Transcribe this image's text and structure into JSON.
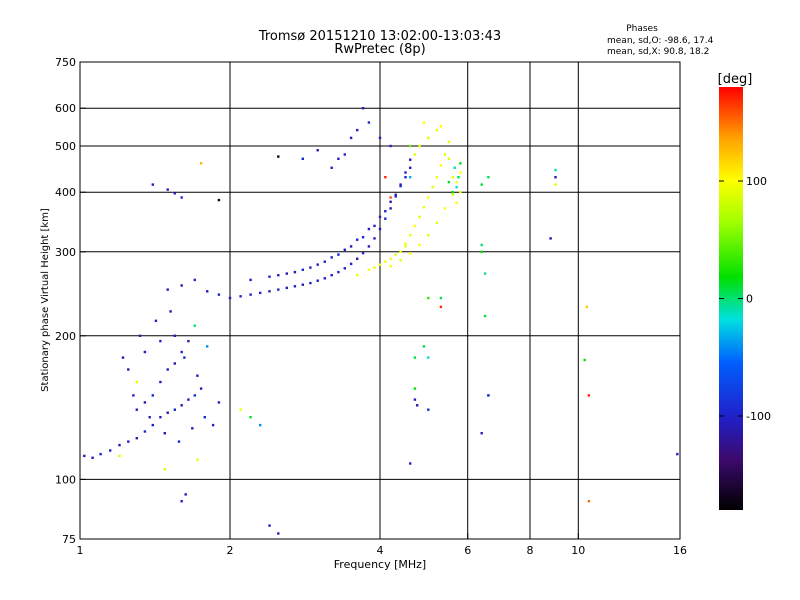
{
  "header": {
    "title_line1": "Tromsø 20151210 13:02:00-13:03:43",
    "title_line2": "RwPretec (8p)",
    "stats_heading": "Phases",
    "stats_o": "mean, sd,O: -98.6, 17.4",
    "stats_x": "mean, sd,X:  90.8, 18.2"
  },
  "colorbar": {
    "unit_label": "[deg]",
    "range": [
      -180,
      180
    ],
    "ticks": [
      {
        "value": 100,
        "label": "100"
      },
      {
        "value": 0,
        "label": "0"
      },
      {
        "value": -100,
        "label": "-100"
      }
    ]
  },
  "chart_data": {
    "type": "scatter",
    "xlabel": "Frequency [MHz]",
    "ylabel": "Stationary phase Virtual Height [km]",
    "xscale": "log",
    "yscale": "log",
    "xlim": [
      1,
      16
    ],
    "ylim": [
      75,
      750
    ],
    "xticks": [
      {
        "value": 1,
        "label": "1"
      },
      {
        "value": 2,
        "label": "2"
      },
      {
        "value": 4,
        "label": "4"
      },
      {
        "value": 6,
        "label": "6"
      },
      {
        "value": 8,
        "label": "8"
      },
      {
        "value": 10,
        "label": "10"
      },
      {
        "value": 16,
        "label": "16"
      }
    ],
    "yticks": [
      {
        "value": 75,
        "label": "75"
      },
      {
        "value": 100,
        "label": "100"
      },
      {
        "value": 200,
        "label": "200"
      },
      {
        "value": 300,
        "label": "300"
      },
      {
        "value": 400,
        "label": "400"
      },
      {
        "value": 500,
        "label": "500"
      },
      {
        "value": 600,
        "label": "600"
      },
      {
        "value": 750,
        "label": "750"
      }
    ],
    "x_gridlines": [
      2,
      4,
      6,
      8,
      10
    ],
    "y_gridlines": [
      100,
      200,
      300,
      400,
      500,
      600
    ],
    "grid": true,
    "color_dimension": "phase [deg]",
    "series": [
      {
        "points": [
          [
            1.02,
            112,
            -105
          ],
          [
            1.06,
            111,
            -110
          ],
          [
            1.1,
            113,
            -100
          ],
          [
            1.15,
            115,
            -95
          ],
          [
            1.2,
            118,
            -115
          ],
          [
            1.25,
            120,
            -100
          ],
          [
            1.3,
            122,
            -110
          ],
          [
            1.35,
            126,
            -95
          ],
          [
            1.4,
            130,
            -105
          ],
          [
            1.45,
            135,
            -100
          ],
          [
            1.5,
            138,
            -120
          ],
          [
            1.55,
            140,
            -95
          ],
          [
            1.6,
            143,
            -110
          ],
          [
            1.65,
            147,
            -100
          ],
          [
            1.7,
            150,
            -90
          ],
          [
            1.75,
            155,
            -105
          ],
          [
            1.3,
            140,
            -100
          ],
          [
            1.35,
            145,
            -110
          ],
          [
            1.4,
            150,
            -95
          ],
          [
            1.45,
            160,
            -105
          ],
          [
            1.5,
            170,
            -100
          ],
          [
            1.55,
            175,
            -110
          ],
          [
            1.6,
            185,
            -95
          ],
          [
            1.65,
            195,
            -105
          ],
          [
            1.25,
            170,
            -115
          ],
          [
            1.35,
            185,
            -100
          ],
          [
            1.45,
            195,
            -95
          ],
          [
            1.55,
            200,
            -110
          ],
          [
            1.28,
            150,
            -100
          ],
          [
            1.38,
            135,
            -105
          ],
          [
            1.48,
            125,
            -110
          ],
          [
            1.58,
            120,
            -100
          ],
          [
            1.68,
            128,
            -105
          ],
          [
            1.78,
            135,
            -95
          ],
          [
            1.85,
            130,
            -100
          ],
          [
            1.9,
            145,
            -105
          ],
          [
            1.42,
            215,
            -100
          ],
          [
            1.52,
            225,
            -110
          ],
          [
            1.62,
            180,
            -95
          ],
          [
            1.72,
            165,
            -105
          ],
          [
            1.32,
            200,
            -100
          ],
          [
            1.22,
            180,
            -110
          ],
          [
            1.6,
            90,
            -100
          ],
          [
            1.63,
            93,
            -110
          ],
          [
            1.2,
            112,
            90
          ],
          [
            1.3,
            160,
            95
          ],
          [
            1.48,
            105,
            85
          ],
          [
            1.72,
            110,
            90
          ],
          [
            2.1,
            140,
            95
          ]
        ]
      },
      {
        "points": [
          [
            1.5,
            250,
            -100
          ],
          [
            1.6,
            255,
            -110
          ],
          [
            1.7,
            262,
            -95
          ],
          [
            1.8,
            248,
            -105
          ],
          [
            1.9,
            244,
            -100
          ],
          [
            2.0,
            240,
            -110
          ],
          [
            2.1,
            242,
            -95
          ],
          [
            2.2,
            244,
            -105
          ],
          [
            2.3,
            246,
            -100
          ],
          [
            2.4,
            248,
            -110
          ],
          [
            2.5,
            250,
            -95
          ],
          [
            2.6,
            252,
            -105
          ],
          [
            2.7,
            254,
            -100
          ],
          [
            2.8,
            256,
            -110
          ],
          [
            2.9,
            258,
            -95
          ],
          [
            3.0,
            261,
            -105
          ],
          [
            3.1,
            264,
            -100
          ],
          [
            3.2,
            268,
            -110
          ],
          [
            3.3,
            272,
            -95
          ],
          [
            3.4,
            277,
            -105
          ],
          [
            3.5,
            283,
            -100
          ],
          [
            3.6,
            290,
            -110
          ],
          [
            3.7,
            298,
            -95
          ],
          [
            3.8,
            308,
            -105
          ],
          [
            3.9,
            320,
            -100
          ],
          [
            4.0,
            335,
            -110
          ],
          [
            4.1,
            352,
            -95
          ],
          [
            4.2,
            370,
            -105
          ],
          [
            4.3,
            392,
            -100
          ],
          [
            4.4,
            415,
            -110
          ],
          [
            4.5,
            440,
            -95
          ],
          [
            4.6,
            468,
            -105
          ],
          [
            2.5,
            268,
            -100
          ],
          [
            2.7,
            272,
            -110
          ],
          [
            2.9,
            278,
            -95
          ],
          [
            3.1,
            286,
            -105
          ],
          [
            3.3,
            296,
            -100
          ],
          [
            3.5,
            308,
            -110
          ],
          [
            3.7,
            322,
            -95
          ],
          [
            3.9,
            340,
            -105
          ],
          [
            4.1,
            365,
            -100
          ],
          [
            4.3,
            395,
            -110
          ],
          [
            4.5,
            430,
            -95
          ],
          [
            2.2,
            262,
            -105
          ],
          [
            2.4,
            266,
            -100
          ],
          [
            2.6,
            270,
            -110
          ],
          [
            2.8,
            275,
            -95
          ],
          [
            3.0,
            282,
            -105
          ],
          [
            3.2,
            292,
            -100
          ],
          [
            3.4,
            303,
            -110
          ],
          [
            3.6,
            318,
            -95
          ],
          [
            3.8,
            335,
            -105
          ],
          [
            4.0,
            355,
            -100
          ],
          [
            4.2,
            382,
            -110
          ],
          [
            4.4,
            412,
            -95
          ],
          [
            4.6,
            450,
            -105
          ],
          [
            3.2,
            450,
            -100
          ],
          [
            3.3,
            470,
            -110
          ],
          [
            3.4,
            480,
            -95
          ],
          [
            3.5,
            520,
            -105
          ],
          [
            3.6,
            540,
            -100
          ],
          [
            3.7,
            600,
            -110
          ],
          [
            3.8,
            560,
            -95
          ],
          [
            4.0,
            520,
            -105
          ],
          [
            4.2,
            500,
            -100
          ],
          [
            3.0,
            490,
            -110
          ],
          [
            2.8,
            470,
            -95
          ],
          [
            1.5,
            405,
            -100
          ],
          [
            1.55,
            398,
            -110
          ],
          [
            1.6,
            390,
            -95
          ],
          [
            1.4,
            415,
            -105
          ]
        ]
      },
      {
        "points": [
          [
            3.6,
            268,
            95
          ],
          [
            3.8,
            275,
            100
          ],
          [
            4.0,
            282,
            90
          ],
          [
            4.2,
            290,
            95
          ],
          [
            4.4,
            300,
            100
          ],
          [
            4.5,
            312,
            90
          ],
          [
            4.6,
            325,
            95
          ],
          [
            4.7,
            340,
            100
          ],
          [
            4.8,
            355,
            90
          ],
          [
            4.9,
            372,
            95
          ],
          [
            5.0,
            390,
            100
          ],
          [
            5.1,
            410,
            90
          ],
          [
            5.2,
            430,
            95
          ],
          [
            5.3,
            455,
            100
          ],
          [
            5.4,
            480,
            90
          ],
          [
            5.5,
            510,
            95
          ],
          [
            4.2,
            280,
            100
          ],
          [
            4.4,
            288,
            90
          ],
          [
            4.6,
            298,
            95
          ],
          [
            4.8,
            310,
            100
          ],
          [
            5.0,
            325,
            90
          ],
          [
            5.2,
            345,
            95
          ],
          [
            5.4,
            370,
            100
          ],
          [
            5.6,
            395,
            90
          ],
          [
            5.7,
            420,
            95
          ],
          [
            5.8,
            440,
            100
          ],
          [
            5.0,
            520,
            90
          ],
          [
            5.2,
            540,
            95
          ],
          [
            4.9,
            560,
            100
          ],
          [
            4.7,
            480,
            90
          ],
          [
            4.8,
            500,
            95
          ],
          [
            5.3,
            550,
            100
          ],
          [
            5.5,
            470,
            90
          ],
          [
            5.6,
            430,
            95
          ],
          [
            5.7,
            380,
            100
          ],
          [
            5.8,
            400,
            90
          ],
          [
            3.9,
            278,
            95
          ],
          [
            4.1,
            286,
            100
          ],
          [
            4.3,
            296,
            90
          ],
          [
            4.5,
            308,
            95
          ]
        ]
      },
      {
        "points": [
          [
            5.5,
            420,
            10
          ],
          [
            5.6,
            400,
            20
          ],
          [
            5.7,
            410,
            -20
          ],
          [
            5.75,
            430,
            5
          ],
          [
            5.65,
            450,
            -10
          ],
          [
            5.8,
            460,
            15
          ],
          [
            4.7,
            180,
            10
          ],
          [
            4.7,
            155,
            20
          ],
          [
            6.5,
            270,
            -5
          ],
          [
            6.5,
            220,
            10
          ],
          [
            6.6,
            150,
            -10
          ],
          [
            5.3,
            240,
            5
          ],
          [
            5.0,
            180,
            -20
          ],
          [
            6.4,
            310,
            0
          ],
          [
            4.6,
            430,
            -30
          ],
          [
            1.7,
            210,
            0
          ],
          [
            1.8,
            190,
            -40
          ],
          [
            2.3,
            130,
            -40
          ],
          [
            2.2,
            135,
            10
          ],
          [
            4.9,
            190,
            10
          ],
          [
            9.0,
            445,
            -10
          ],
          [
            10.3,
            178,
            20
          ]
        ]
      },
      {
        "points": [
          [
            6.4,
            415,
            10
          ],
          [
            6.6,
            430,
            5
          ],
          [
            6.4,
            300,
            20
          ],
          [
            4.6,
            500,
            50
          ],
          [
            5.0,
            240,
            30
          ],
          [
            9.0,
            415,
            90
          ],
          [
            10.5,
            150,
            170
          ],
          [
            10.5,
            90,
            150
          ],
          [
            10.4,
            230,
            120
          ],
          [
            5.3,
            230,
            170
          ],
          [
            4.1,
            430,
            170
          ],
          [
            4.2,
            390,
            160
          ],
          [
            2.5,
            475,
            -170
          ],
          [
            1.9,
            385,
            -170
          ],
          [
            1.75,
            460,
            130
          ]
        ]
      },
      {
        "points": [
          [
            4.6,
            108,
            -100
          ],
          [
            6.4,
            125,
            -110
          ],
          [
            8.8,
            320,
            -120
          ],
          [
            15.8,
            113,
            -100
          ],
          [
            9.0,
            430,
            -110
          ],
          [
            5.0,
            140,
            -90
          ],
          [
            2.5,
            77,
            -105
          ],
          [
            4.7,
            147,
            -100
          ],
          [
            4.75,
            143,
            -110
          ],
          [
            6.6,
            150,
            -95
          ],
          [
            2.4,
            80,
            -100
          ]
        ]
      }
    ]
  }
}
